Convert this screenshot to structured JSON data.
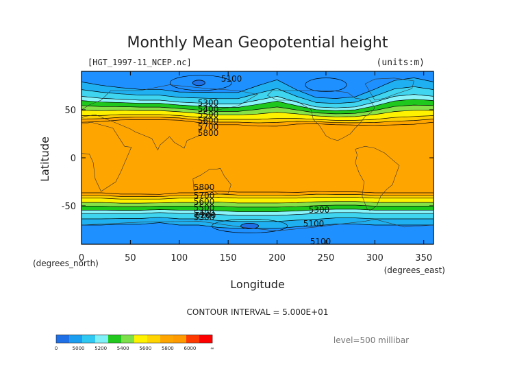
{
  "chart_data": {
    "type": "heatmap",
    "subtype": "filled-contour-map",
    "title": "Monthly Mean Geopotential height",
    "file_label": "[HGT_1997-11_NCEP.nc]",
    "units_label": "(units:m)",
    "xlabel": "Longitude",
    "ylabel": "Latitude",
    "x_unit_label": "(degrees_east)",
    "y_unit_label": "(degrees_north)",
    "xlim": [
      0,
      360
    ],
    "ylim": [
      -90,
      90
    ],
    "x_ticks": [
      0,
      50,
      100,
      150,
      200,
      250,
      300,
      350
    ],
    "y_ticks": [
      -50,
      0,
      50
    ],
    "contour_interval_text": "CONTOUR INTERVAL = 5.000E+01",
    "level_text": "level=500 millibar",
    "grid": false,
    "colorbar": {
      "labels": [
        "0",
        "5000",
        "5200",
        "5400",
        "5600",
        "5800",
        "6000",
        "∞"
      ],
      "colors": [
        "#1f6fe6",
        "#1b9ef0",
        "#2fc8f2",
        "#7ff0f8",
        "#22c81e",
        "#7be04a",
        "#fff200",
        "#ffd400",
        "#ffa500",
        "#ff9a00",
        "#ff3a00",
        "#ff0000"
      ]
    },
    "band_colors": {
      "low": "#1f6fe6",
      "polar": "#1e90ff",
      "subpolar_a": "#1fb0f2",
      "subpolar_b": "#3fd4f0",
      "cyan": "#8af4fb",
      "green_dark": "#1fc81c",
      "green_light": "#86e048",
      "yellow": "#fff200",
      "gold": "#ffd000",
      "orange": "#ffa500"
    },
    "contour_labels": [
      "5100",
      "5300",
      "5400",
      "5500",
      "5600",
      "5700",
      "5800",
      "5200",
      "5300",
      "5100",
      "5100",
      "5800",
      "5700",
      "5600",
      "5500",
      "5400",
      "5300",
      "5200"
    ],
    "north_profile": {
      "lon": [
        0,
        20,
        40,
        60,
        80,
        100,
        120,
        140,
        160,
        180,
        200,
        220,
        240,
        260,
        280,
        300,
        320,
        340,
        360
      ],
      "lat_5300": [
        64,
        62,
        61,
        60,
        60,
        58,
        57,
        56,
        56,
        60,
        64,
        58,
        53,
        52,
        53,
        58,
        64,
        66,
        64
      ],
      "lat_5700": [
        44,
        44,
        45,
        45,
        45,
        44,
        42,
        40,
        40,
        40,
        41,
        41,
        40,
        39,
        39,
        40,
        42,
        43,
        44
      ]
    },
    "south_profile": {
      "lon": [
        0,
        20,
        40,
        60,
        80,
        100,
        120,
        140,
        160,
        180,
        200,
        220,
        240,
        260,
        280,
        300,
        320,
        340,
        360
      ],
      "lat_5300": [
        -58,
        -58,
        -58,
        -58,
        -57,
        -58,
        -58,
        -59,
        -60,
        -60,
        -60,
        -59,
        -58,
        -57,
        -57,
        -58,
        -58,
        -58,
        -58
      ],
      "lat_5700": [
        -42,
        -42,
        -43,
        -43,
        -43,
        -42,
        -42,
        -41,
        -42,
        -42,
        -42,
        -42,
        -41,
        -41,
        -41,
        -42,
        -42,
        -42,
        -42
      ]
    }
  }
}
